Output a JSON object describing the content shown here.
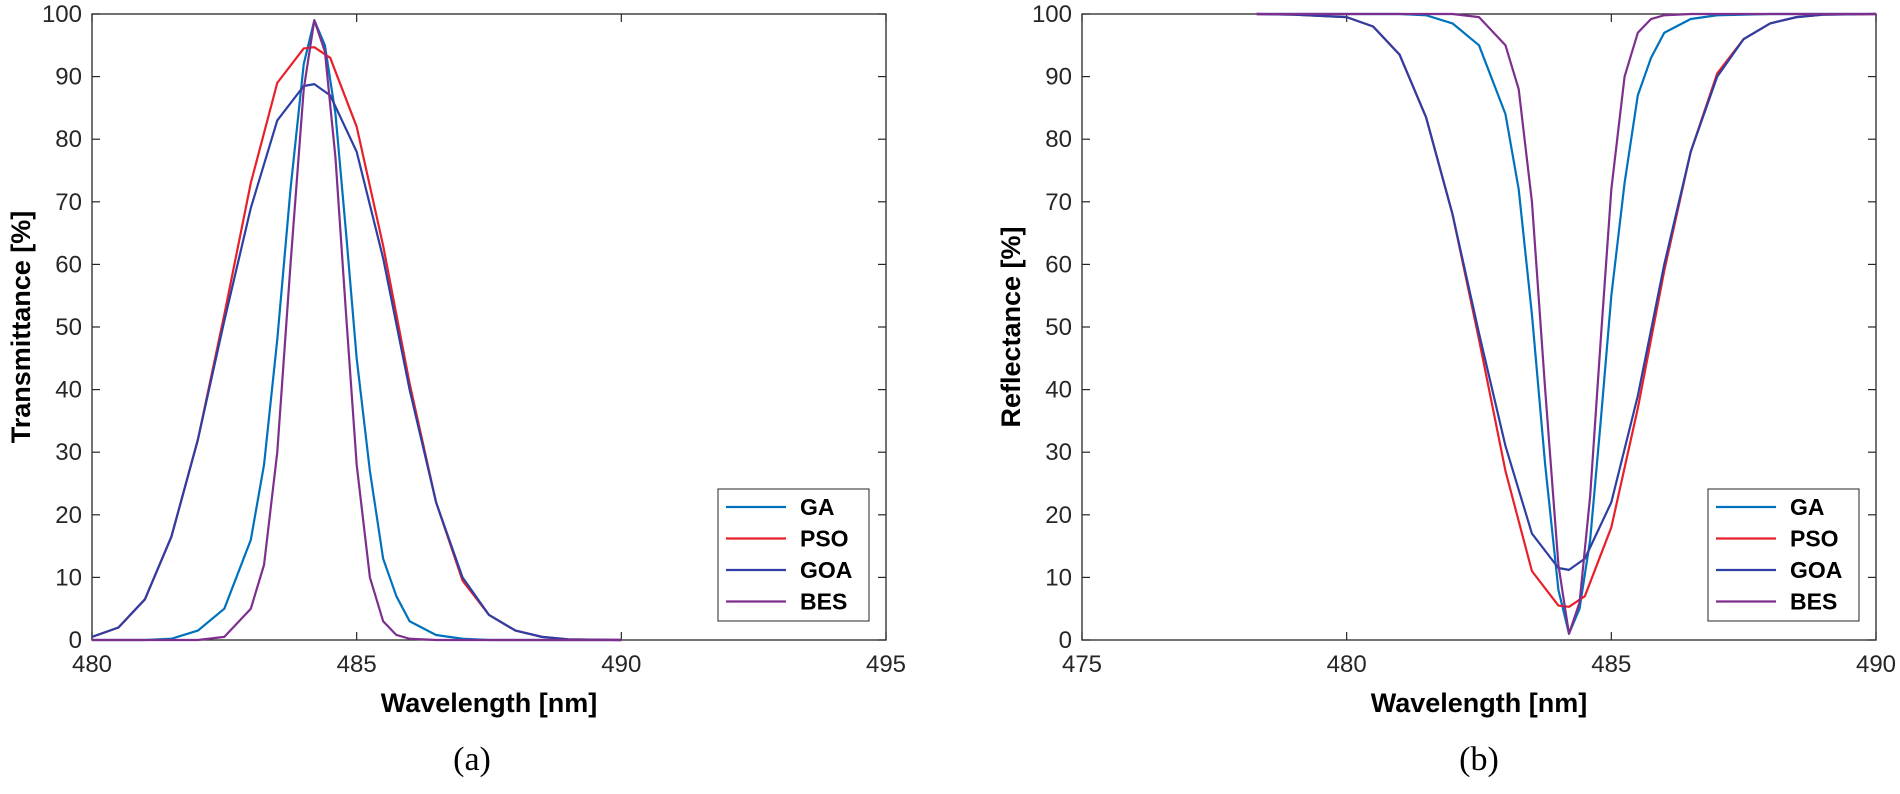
{
  "chart_data": [
    {
      "type": "line",
      "caption": "(a)",
      "xlabel": "Wavelength [nm]",
      "ylabel": "Transmittance [%]",
      "xlim": [
        480,
        495
      ],
      "ylim": [
        0,
        100
      ],
      "xticks": [
        480,
        485,
        490,
        495
      ],
      "yticks": [
        0,
        10,
        20,
        30,
        40,
        50,
        60,
        70,
        80,
        90,
        100
      ],
      "grid": false,
      "legend_position": "bottom-right",
      "series": [
        {
          "name": "GA",
          "color": "#0072BD",
          "x": [
            480,
            481,
            481.5,
            482,
            482.5,
            483,
            483.25,
            483.5,
            483.75,
            484,
            484.2,
            484.4,
            484.6,
            484.8,
            485,
            485.25,
            485.5,
            485.75,
            486,
            486.5,
            487,
            487.5,
            488,
            490
          ],
          "y": [
            0,
            0,
            0.2,
            1.5,
            5,
            16,
            28,
            48,
            72,
            92,
            99,
            95,
            84,
            65,
            45,
            27,
            13,
            7,
            3,
            0.8,
            0.2,
            0,
            0,
            0
          ]
        },
        {
          "name": "PSO",
          "color": "#E8202A",
          "x": [
            480,
            480.5,
            481,
            481.5,
            482,
            482.5,
            483,
            483.5,
            484,
            484.2,
            484.5,
            485,
            485.5,
            486,
            486.5,
            487,
            487.5,
            488,
            488.5,
            489,
            490
          ],
          "y": [
            0.5,
            2,
            6.5,
            16.5,
            32,
            52,
            73,
            89,
            94.5,
            94.7,
            93,
            82,
            63,
            41,
            22,
            9.5,
            4,
            1.5,
            0.5,
            0.1,
            0
          ]
        },
        {
          "name": "GOA",
          "color": "#2E3FA3",
          "x": [
            480,
            480.5,
            481,
            481.5,
            482,
            482.5,
            483,
            483.5,
            484,
            484.2,
            484.5,
            485,
            485.5,
            486,
            486.5,
            487,
            487.5,
            488,
            488.5,
            489,
            490
          ],
          "y": [
            0.5,
            2,
            6.5,
            16.5,
            32,
            51,
            69,
            83,
            88.5,
            88.8,
            87,
            78,
            61,
            40,
            22,
            10,
            4,
            1.5,
            0.5,
            0.1,
            0
          ]
        },
        {
          "name": "BES",
          "color": "#7E2F8E",
          "x": [
            480,
            482,
            482.5,
            483,
            483.25,
            483.5,
            483.75,
            484,
            484.2,
            484.4,
            484.6,
            484.8,
            485,
            485.25,
            485.5,
            485.75,
            486,
            486.5,
            487,
            490
          ],
          "y": [
            0,
            0,
            0.5,
            5,
            12,
            30,
            60,
            88,
            99,
            94,
            77,
            52,
            28,
            10,
            3,
            0.8,
            0.2,
            0,
            0,
            0
          ]
        }
      ]
    },
    {
      "type": "line",
      "caption": "(b)",
      "xlabel": "Wavelength [nm]",
      "ylabel": "Reflectance [%]",
      "xlim": [
        475,
        490
      ],
      "ylim": [
        0,
        100
      ],
      "xticks": [
        475,
        480,
        485,
        490
      ],
      "yticks": [
        0,
        10,
        20,
        30,
        40,
        50,
        60,
        70,
        80,
        90,
        100
      ],
      "grid": false,
      "legend_position": "bottom-right",
      "series": [
        {
          "name": "GA",
          "color": "#0072BD",
          "x": [
            478.3,
            480,
            481,
            481.5,
            482,
            482.5,
            483,
            483.25,
            483.5,
            483.75,
            484,
            484.2,
            484.4,
            484.6,
            484.8,
            485,
            485.25,
            485.5,
            485.75,
            486,
            486.5,
            487,
            488,
            490
          ],
          "y": [
            100,
            100,
            100,
            99.8,
            98.5,
            95,
            84,
            72,
            52,
            28,
            8,
            1,
            5,
            16,
            35,
            55,
            73,
            87,
            93,
            97,
            99.2,
            99.8,
            100,
            100
          ]
        },
        {
          "name": "PSO",
          "color": "#E8202A",
          "x": [
            478.3,
            479,
            480,
            480.5,
            481,
            481.5,
            482,
            482.5,
            483,
            483.5,
            484,
            484.2,
            484.5,
            485,
            485.5,
            486,
            486.5,
            487,
            487.5,
            488,
            488.5,
            489,
            490
          ],
          "y": [
            100,
            99.9,
            99.5,
            98,
            93.5,
            83.5,
            68,
            48,
            27,
            11,
            5.5,
            5.3,
            7,
            18,
            37,
            59,
            78,
            90.5,
            96,
            98.5,
            99.5,
            99.9,
            100
          ]
        },
        {
          "name": "GOA",
          "color": "#2E3FA3",
          "x": [
            478.3,
            479,
            480,
            480.5,
            481,
            481.5,
            482,
            482.5,
            483,
            483.5,
            484,
            484.2,
            484.5,
            485,
            485.5,
            486,
            486.5,
            487,
            487.5,
            488,
            488.5,
            489,
            490
          ],
          "y": [
            100,
            99.9,
            99.5,
            98,
            93.5,
            83.5,
            68,
            49,
            31,
            17,
            11.5,
            11.2,
            13,
            22,
            39,
            60,
            78,
            90,
            96,
            98.5,
            99.5,
            99.9,
            100
          ]
        },
        {
          "name": "BES",
          "color": "#7E2F8E",
          "x": [
            478.3,
            480,
            482,
            482.5,
            483,
            483.25,
            483.5,
            483.75,
            484,
            484.2,
            484.4,
            484.6,
            484.8,
            485,
            485.25,
            485.5,
            485.75,
            486,
            486.5,
            487,
            490
          ],
          "y": [
            100,
            100,
            100,
            99.5,
            95,
            88,
            70,
            40,
            12,
            1,
            6,
            23,
            48,
            72,
            90,
            97,
            99.2,
            99.8,
            100,
            100,
            100
          ]
        }
      ]
    }
  ]
}
